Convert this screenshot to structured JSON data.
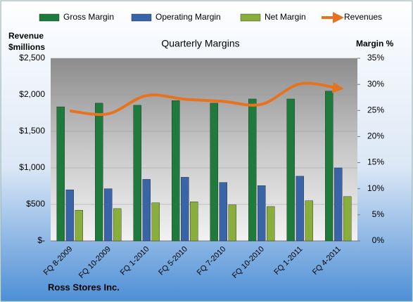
{
  "chart_data": {
    "type": "bar_line",
    "title": "Quarterly Margins",
    "y_label": [
      "Revenue",
      "$millions"
    ],
    "y2_label": "Margin %",
    "footer": "Ross Stores Inc.",
    "categories": [
      "FQ 8-2009",
      "FQ 10-2009",
      "FQ 1-2010",
      "FQ 5-2010",
      "FQ 7-2010",
      "FQ 10-2010",
      "FQ 1-2011",
      "FQ 4-2011"
    ],
    "series": [
      {
        "name": "Gross Margin",
        "color": "#1e7b3c",
        "type": "bar",
        "axis": "y2",
        "values": [
          25.7,
          26.4,
          26.0,
          26.9,
          26.4,
          27.2,
          27.2,
          28.7
        ]
      },
      {
        "name": "Operating Margin",
        "color": "#3a64a8",
        "type": "bar",
        "axis": "y2",
        "values": [
          9.8,
          10.0,
          11.8,
          12.2,
          11.2,
          10.6,
          12.4,
          14.0
        ]
      },
      {
        "name": "Net Margin",
        "color": "#8aae3c",
        "type": "bar",
        "axis": "y2",
        "values": [
          5.9,
          6.2,
          7.3,
          7.5,
          6.9,
          6.6,
          7.7,
          8.5
        ]
      },
      {
        "name": "Revenues",
        "color": "#e8731e",
        "type": "line",
        "axis": "y",
        "values": [
          1780,
          1740,
          1990,
          1940,
          1910,
          1870,
          2150,
          2090
        ]
      }
    ],
    "ylim": [
      0,
      2500
    ],
    "yticks": [
      {
        "value": 0,
        "label": "$-"
      },
      {
        "value": 500,
        "label": "$500"
      },
      {
        "value": 1000,
        "label": "$1,000"
      },
      {
        "value": 1500,
        "label": "$1,500"
      },
      {
        "value": 2000,
        "label": "$2,000"
      },
      {
        "value": 2500,
        "label": "$2,500"
      }
    ],
    "y2lim": [
      0,
      35
    ],
    "y2ticks": [
      {
        "value": 0,
        "label": "0%"
      },
      {
        "value": 5,
        "label": "5%"
      },
      {
        "value": 10,
        "label": "10%"
      },
      {
        "value": 15,
        "label": "15%"
      },
      {
        "value": 20,
        "label": "20%"
      },
      {
        "value": 25,
        "label": "25%"
      },
      {
        "value": 30,
        "label": "30%"
      },
      {
        "value": 35,
        "label": "35%"
      }
    ],
    "grid": true
  }
}
